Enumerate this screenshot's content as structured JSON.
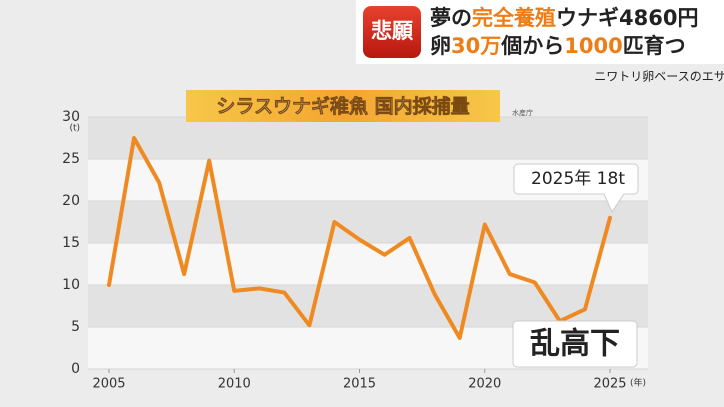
{
  "headline": {
    "badge": "悲願",
    "line1": [
      "夢の",
      "完全養殖",
      "ウナギ4860円"
    ],
    "line2": [
      "卵",
      "30万",
      "個から",
      "1000",
      "匹育つ"
    ],
    "subtitle": "ニワトリ卵ベースのエサ"
  },
  "chart_data": {
    "type": "line",
    "title": "シラスウナギ稚魚 国内採捕量",
    "source": "水産庁",
    "y_unit": "(t)",
    "x_unit": "(年)",
    "x": [
      2005,
      2006,
      2007,
      2008,
      2009,
      2010,
      2011,
      2012,
      2013,
      2014,
      2015,
      2016,
      2017,
      2018,
      2019,
      2020,
      2021,
      2022,
      2023,
      2024,
      2025
    ],
    "values": [
      10.0,
      27.5,
      22.2,
      11.3,
      24.8,
      9.3,
      9.6,
      9.1,
      5.2,
      17.5,
      15.4,
      13.6,
      15.6,
      8.9,
      3.7,
      17.2,
      11.3,
      10.3,
      5.7,
      7.1,
      18
    ],
    "color": "#ef8a22",
    "xlim": [
      2005,
      2025
    ],
    "xticks": [
      2005,
      2010,
      2015,
      2020,
      2025
    ],
    "ylim": [
      0,
      30
    ],
    "yticks": [
      0,
      5,
      10,
      15,
      20,
      25,
      30
    ],
    "grid": true,
    "annotations": [
      "2025年 18t",
      "乱高下"
    ]
  }
}
